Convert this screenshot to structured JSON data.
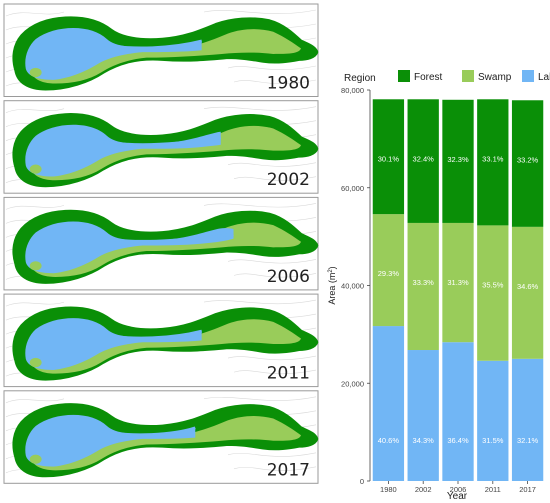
{
  "colors": {
    "forest": "#0a8f07",
    "swamp": "#99cc5a",
    "lake": "#71b6f5",
    "panel_border": "#9a9a9a",
    "contour": "#d9d9d9"
  },
  "panels": [
    {
      "year_label": "1980",
      "lake_end": 0.62,
      "swamp_start": 0.5
    },
    {
      "year_label": "2002",
      "lake_end": 0.68,
      "swamp_start": 0.22
    },
    {
      "year_label": "2006",
      "lake_end": 0.72,
      "swamp_start": 0.24
    },
    {
      "year_label": "2011",
      "lake_end": 0.62,
      "swamp_start": 0.2
    },
    {
      "year_label": "2017",
      "lake_end": 0.6,
      "swamp_start": 0.18
    }
  ],
  "chart_data": {
    "type": "bar",
    "stacked": true,
    "categories": [
      "1980",
      "2002",
      "2006",
      "2011",
      "2017"
    ],
    "series": [
      {
        "name": "Lake",
        "percent_labels": [
          "40.6%",
          "34.3%",
          "36.4%",
          "31.5%",
          "32.1%"
        ],
        "values": [
          31700,
          26800,
          28400,
          24600,
          25000
        ]
      },
      {
        "name": "Swamp",
        "percent_labels": [
          "29.3%",
          "33.3%",
          "31.3%",
          "35.5%",
          "34.6%"
        ],
        "values": [
          22900,
          26000,
          24400,
          27700,
          27000
        ]
      },
      {
        "name": "Forest",
        "percent_labels": [
          "30.1%",
          "32.4%",
          "32.3%",
          "33.1%",
          "33.2%"
        ],
        "values": [
          23500,
          25300,
          25200,
          25800,
          25900
        ]
      }
    ],
    "legend_title": "Region",
    "legend_order": [
      "Forest",
      "Swamp",
      "Lake"
    ],
    "legend_position": "top",
    "xlabel": "Year",
    "ylabel_text": "Area (m",
    "ylabel_sup": "2",
    "ylabel_close": ")",
    "ylim": [
      0,
      80000
    ],
    "yticks": [
      0,
      20000,
      40000,
      60000,
      80000
    ],
    "ytick_labels": [
      "0",
      "20,000",
      "40,000",
      "60,000",
      "80,000"
    ],
    "grid": false
  }
}
